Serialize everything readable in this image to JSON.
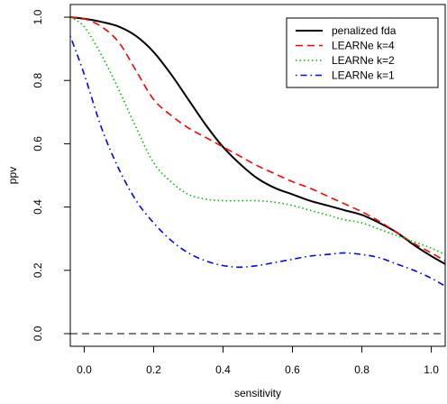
{
  "chart_data": {
    "type": "line",
    "title": "",
    "xlabel": "sensitivity",
    "ylabel": "ppv",
    "xlim": [
      -0.04,
      1.04
    ],
    "ylim": [
      -0.04,
      1.04
    ],
    "x_ticks": [
      0.0,
      0.2,
      0.4,
      0.6,
      0.8,
      1.0
    ],
    "x_tick_labels": [
      "0.0",
      "0.2",
      "0.4",
      "0.6",
      "0.8",
      "1.0"
    ],
    "y_ticks": [
      0.0,
      0.2,
      0.4,
      0.6,
      0.8,
      1.0
    ],
    "y_tick_labels": [
      "0.0",
      "0.2",
      "0.4",
      "0.6",
      "0.8",
      "1.0"
    ],
    "grid": false,
    "legend_position": "top-right",
    "reference_line": {
      "y": 0.0,
      "color": "#000000",
      "style": "dashed"
    },
    "series": [
      {
        "name": "penalized fda",
        "color": "#000000",
        "style": "solid",
        "x": [
          -0.04,
          0.0,
          0.05,
          0.1,
          0.15,
          0.2,
          0.25,
          0.3,
          0.35,
          0.4,
          0.45,
          0.5,
          0.55,
          0.6,
          0.65,
          0.7,
          0.75,
          0.8,
          0.85,
          0.9,
          0.95,
          1.0,
          1.04
        ],
        "y": [
          1.0,
          0.995,
          0.985,
          0.97,
          0.94,
          0.89,
          0.82,
          0.74,
          0.66,
          0.59,
          0.535,
          0.49,
          0.46,
          0.44,
          0.42,
          0.405,
          0.39,
          0.375,
          0.35,
          0.32,
          0.28,
          0.245,
          0.22
        ]
      },
      {
        "name": "LEARNe k=4",
        "color": "#ff0000",
        "style": "dashed",
        "x": [
          -0.04,
          0.0,
          0.05,
          0.1,
          0.15,
          0.2,
          0.25,
          0.3,
          0.35,
          0.4,
          0.45,
          0.5,
          0.55,
          0.6,
          0.65,
          0.7,
          0.75,
          0.8,
          0.85,
          0.9,
          0.95,
          1.0,
          1.04
        ],
        "y": [
          1.0,
          0.995,
          0.97,
          0.92,
          0.83,
          0.74,
          0.69,
          0.65,
          0.62,
          0.59,
          0.56,
          0.53,
          0.505,
          0.48,
          0.46,
          0.435,
          0.41,
          0.385,
          0.355,
          0.32,
          0.285,
          0.255,
          0.23
        ]
      },
      {
        "name": "LEARNe k=2",
        "color": "#00bb00",
        "style": "dotted",
        "x": [
          -0.04,
          0.0,
          0.05,
          0.1,
          0.15,
          0.2,
          0.25,
          0.3,
          0.35,
          0.4,
          0.45,
          0.5,
          0.55,
          0.6,
          0.65,
          0.7,
          0.75,
          0.8,
          0.85,
          0.9,
          0.95,
          1.0,
          1.04
        ],
        "y": [
          1.0,
          0.97,
          0.88,
          0.77,
          0.65,
          0.54,
          0.48,
          0.44,
          0.425,
          0.42,
          0.42,
          0.42,
          0.415,
          0.405,
          0.39,
          0.375,
          0.36,
          0.35,
          0.33,
          0.31,
          0.29,
          0.27,
          0.25
        ]
      },
      {
        "name": "LEARNe k=1",
        "color": "#0000ff",
        "style": "dotdash",
        "x": [
          -0.04,
          0.0,
          0.05,
          0.1,
          0.15,
          0.2,
          0.25,
          0.3,
          0.35,
          0.4,
          0.45,
          0.5,
          0.55,
          0.6,
          0.65,
          0.7,
          0.75,
          0.8,
          0.85,
          0.9,
          0.95,
          1.0,
          1.04
        ],
        "y": [
          0.94,
          0.82,
          0.65,
          0.52,
          0.42,
          0.35,
          0.295,
          0.255,
          0.23,
          0.215,
          0.21,
          0.215,
          0.225,
          0.235,
          0.245,
          0.25,
          0.255,
          0.25,
          0.24,
          0.22,
          0.2,
          0.175,
          0.15
        ]
      }
    ]
  }
}
